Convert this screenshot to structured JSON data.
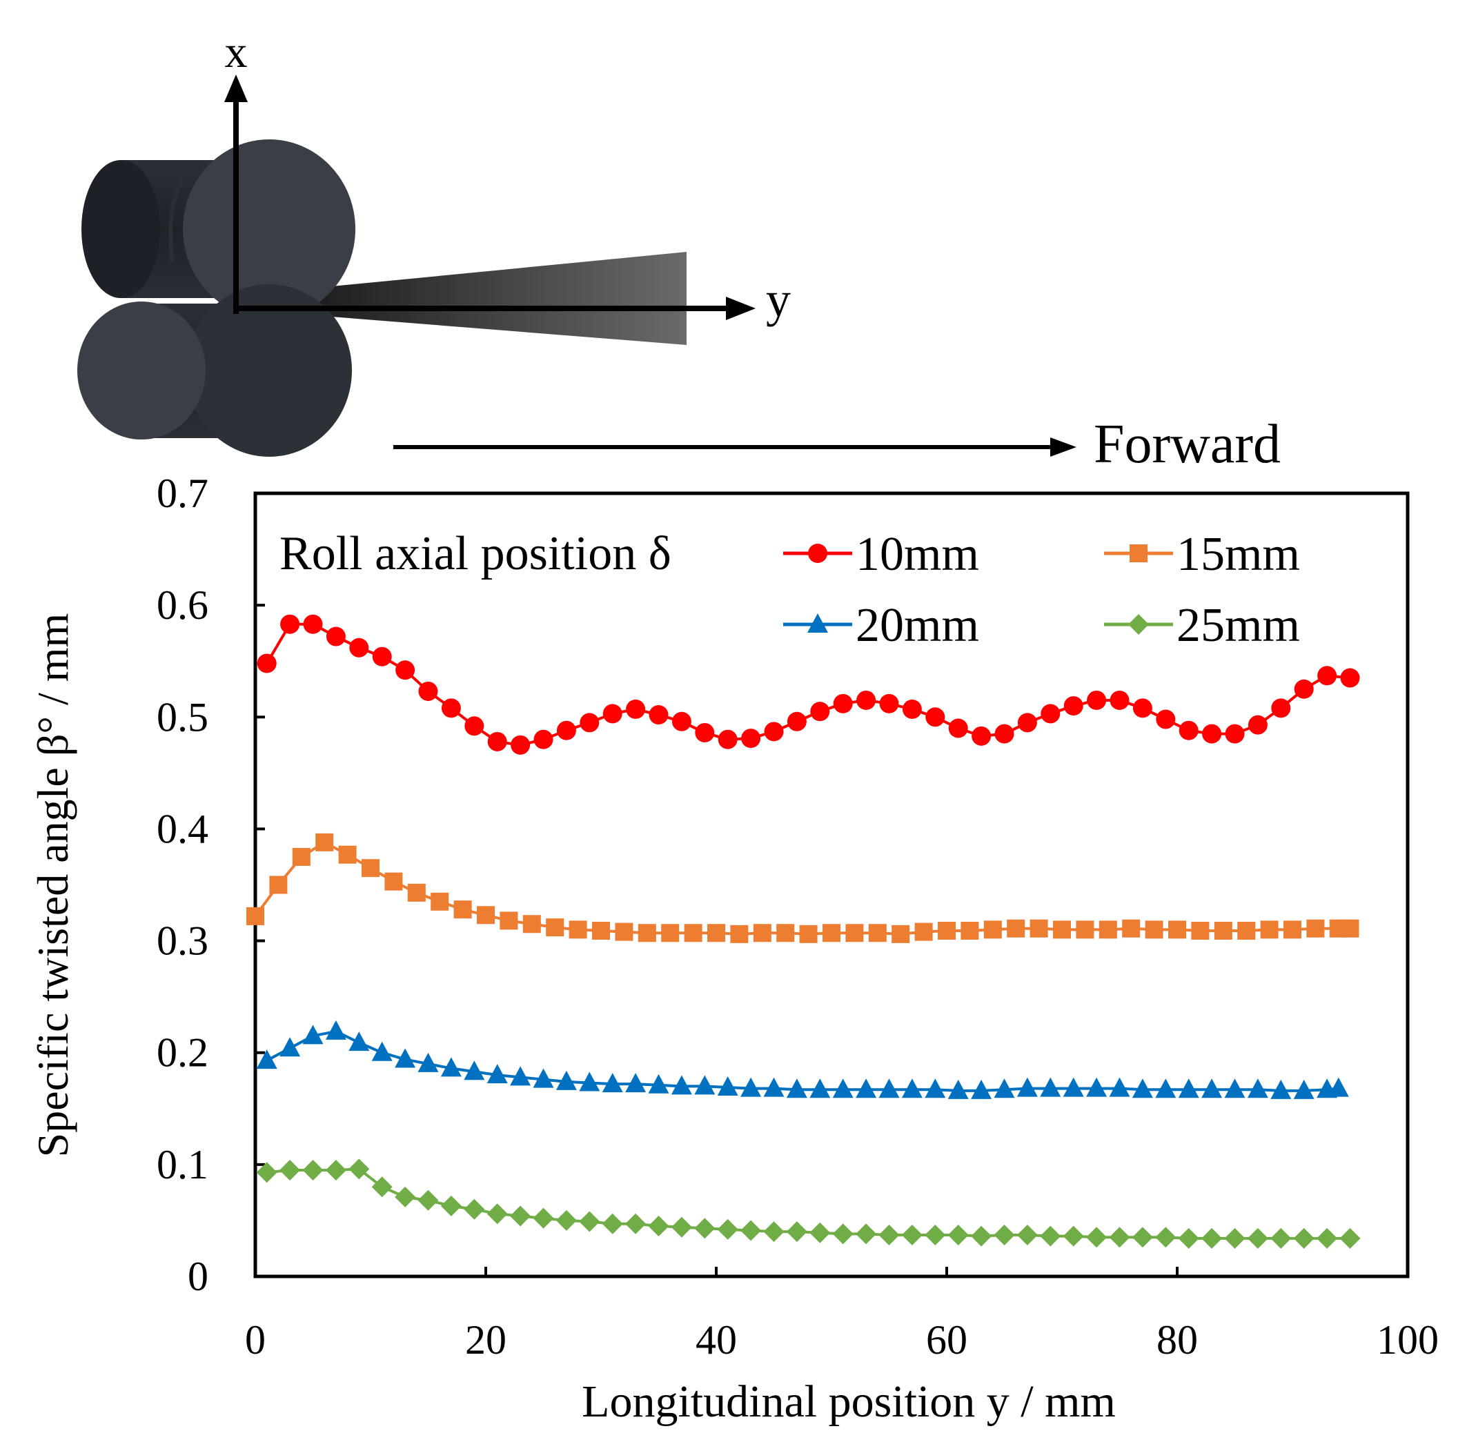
{
  "illustration": {
    "axis_x_label": "x",
    "axis_y_label": "y",
    "forward_label": "Forward"
  },
  "chart_data": {
    "type": "line",
    "xlabel": "Longitudinal position y / mm",
    "ylabel": "Specific twisted angle β°  / mm",
    "xlim": [
      0,
      100
    ],
    "ylim": [
      0,
      0.7
    ],
    "xticks": [
      "0",
      "20",
      "40",
      "60",
      "80",
      "100"
    ],
    "yticks": [
      "0",
      "0.1",
      "0.2",
      "0.3",
      "0.4",
      "0.5",
      "0.6",
      "0.7"
    ],
    "grid": false,
    "legend_title": "Roll axial position δ",
    "legend_position": "top",
    "series": [
      {
        "name": "10mm",
        "color": "#ff0000",
        "marker": "circle",
        "x": [
          1,
          3,
          5,
          7,
          9,
          11,
          13,
          15,
          17,
          19,
          21,
          23,
          25,
          27,
          29,
          31,
          33,
          35,
          37,
          39,
          41,
          43,
          45,
          47,
          49,
          51,
          53,
          55,
          57,
          59,
          61,
          63,
          65,
          67,
          69,
          71,
          73,
          75,
          77,
          79,
          81,
          83,
          85,
          87,
          89,
          91,
          93,
          95
        ],
        "y": [
          0.548,
          0.583,
          0.583,
          0.572,
          0.562,
          0.554,
          0.542,
          0.523,
          0.508,
          0.492,
          0.478,
          0.475,
          0.48,
          0.488,
          0.495,
          0.503,
          0.507,
          0.502,
          0.496,
          0.486,
          0.48,
          0.481,
          0.487,
          0.496,
          0.505,
          0.512,
          0.515,
          0.512,
          0.507,
          0.5,
          0.49,
          0.483,
          0.485,
          0.495,
          0.503,
          0.51,
          0.515,
          0.515,
          0.508,
          0.498,
          0.488,
          0.485,
          0.485,
          0.493,
          0.508,
          0.525,
          0.537,
          0.535
        ]
      },
      {
        "name": "15mm",
        "color": "#ed7d31",
        "marker": "square",
        "x": [
          0,
          2,
          4,
          6,
          8,
          10,
          12,
          14,
          16,
          18,
          20,
          22,
          24,
          26,
          28,
          30,
          32,
          34,
          36,
          38,
          40,
          42,
          44,
          46,
          48,
          50,
          52,
          54,
          56,
          58,
          60,
          62,
          64,
          66,
          68,
          70,
          72,
          74,
          76,
          78,
          80,
          82,
          84,
          86,
          88,
          90,
          92,
          94,
          95
        ],
        "y": [
          0.322,
          0.35,
          0.375,
          0.388,
          0.377,
          0.365,
          0.353,
          0.343,
          0.335,
          0.328,
          0.323,
          0.318,
          0.315,
          0.312,
          0.31,
          0.309,
          0.308,
          0.307,
          0.307,
          0.307,
          0.307,
          0.306,
          0.307,
          0.307,
          0.306,
          0.307,
          0.307,
          0.307,
          0.306,
          0.308,
          0.309,
          0.309,
          0.31,
          0.311,
          0.311,
          0.31,
          0.31,
          0.31,
          0.311,
          0.31,
          0.31,
          0.309,
          0.309,
          0.309,
          0.31,
          0.31,
          0.311,
          0.311,
          0.311
        ]
      },
      {
        "name": "20mm",
        "color": "#0070c0",
        "marker": "triangle",
        "x": [
          1,
          3,
          5,
          7,
          9,
          11,
          13,
          15,
          17,
          19,
          21,
          23,
          25,
          27,
          29,
          31,
          33,
          35,
          37,
          39,
          41,
          43,
          45,
          47,
          49,
          51,
          53,
          55,
          57,
          59,
          61,
          63,
          65,
          67,
          69,
          71,
          73,
          75,
          77,
          79,
          81,
          83,
          85,
          87,
          89,
          91,
          93,
          94
        ],
        "y": [
          0.193,
          0.204,
          0.215,
          0.219,
          0.209,
          0.2,
          0.194,
          0.19,
          0.186,
          0.183,
          0.18,
          0.178,
          0.176,
          0.174,
          0.173,
          0.172,
          0.172,
          0.171,
          0.17,
          0.17,
          0.169,
          0.168,
          0.168,
          0.167,
          0.167,
          0.167,
          0.167,
          0.167,
          0.167,
          0.167,
          0.166,
          0.166,
          0.167,
          0.168,
          0.168,
          0.168,
          0.168,
          0.168,
          0.167,
          0.167,
          0.167,
          0.167,
          0.167,
          0.167,
          0.166,
          0.166,
          0.167,
          0.168
        ]
      },
      {
        "name": "25mm",
        "color": "#70ad47",
        "marker": "diamond",
        "x": [
          1,
          3,
          5,
          7,
          9,
          11,
          13,
          15,
          17,
          19,
          21,
          23,
          25,
          27,
          29,
          31,
          33,
          35,
          37,
          39,
          41,
          43,
          45,
          47,
          49,
          51,
          53,
          55,
          57,
          59,
          61,
          63,
          65,
          67,
          69,
          71,
          73,
          75,
          77,
          79,
          81,
          83,
          85,
          87,
          89,
          91,
          93,
          95
        ],
        "y": [
          0.093,
          0.095,
          0.095,
          0.095,
          0.096,
          0.08,
          0.071,
          0.068,
          0.063,
          0.06,
          0.056,
          0.054,
          0.052,
          0.05,
          0.049,
          0.047,
          0.047,
          0.045,
          0.044,
          0.043,
          0.042,
          0.041,
          0.04,
          0.04,
          0.039,
          0.038,
          0.038,
          0.037,
          0.037,
          0.037,
          0.037,
          0.036,
          0.037,
          0.037,
          0.036,
          0.036,
          0.035,
          0.035,
          0.035,
          0.035,
          0.034,
          0.034,
          0.034,
          0.034,
          0.034,
          0.034,
          0.034,
          0.034
        ]
      }
    ]
  }
}
